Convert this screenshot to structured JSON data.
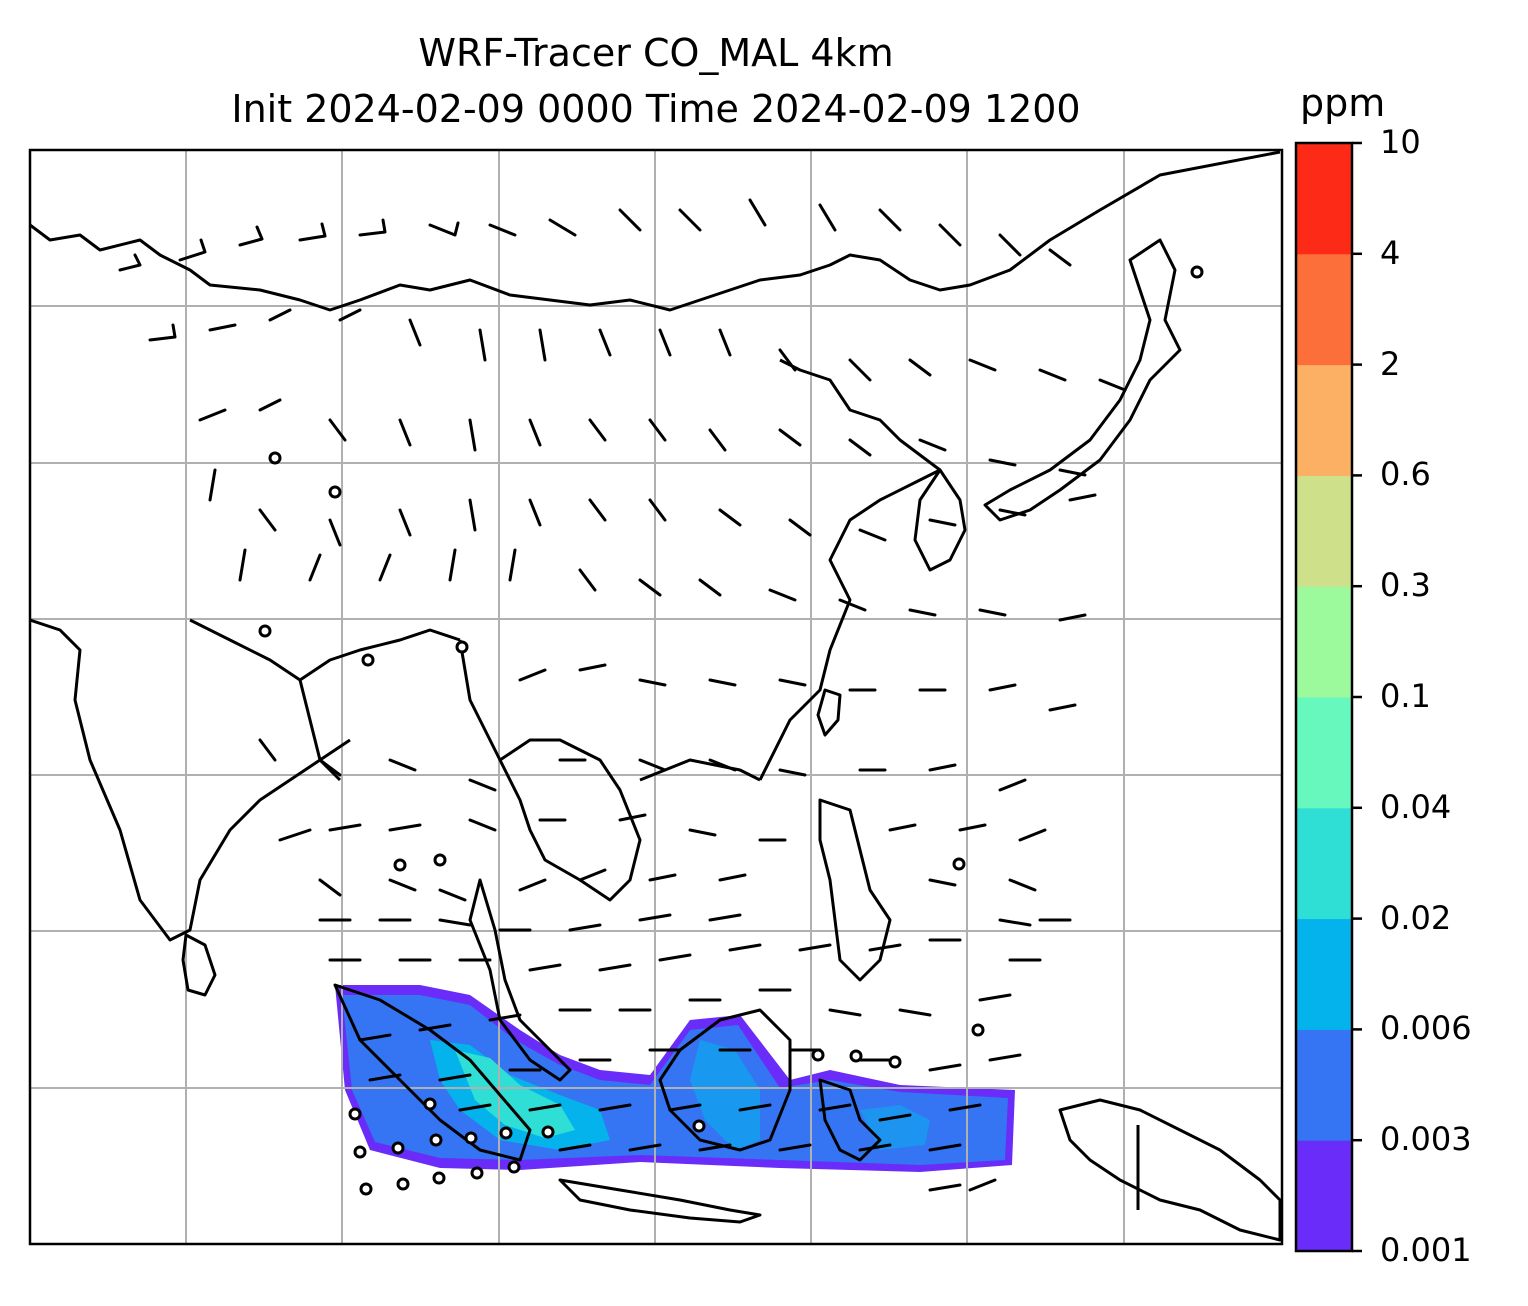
{
  "title": {
    "line1": "WRF-Tracer CO_MAL 4km",
    "line2": "Init 2024-02-09 0000 Time 2024-02-09 1200"
  },
  "colorbar": {
    "unit": "ppm",
    "levels": [
      "0.001",
      "0.003",
      "0.006",
      "0.02",
      "0.04",
      "0.1",
      "0.3",
      "0.6",
      "2",
      "4",
      "10"
    ],
    "colors": [
      "#6a2cf8",
      "#3574f2",
      "#05b3ec",
      "#2fdfd6",
      "#67f8bd",
      "#9cf99c",
      "#cee089",
      "#fcb063",
      "#fd6f3a",
      "#fe2a18"
    ]
  },
  "map": {
    "gridlines": true,
    "features": [
      "coastlines",
      "country-borders",
      "wind-barbs",
      "tracer-plume"
    ]
  }
}
